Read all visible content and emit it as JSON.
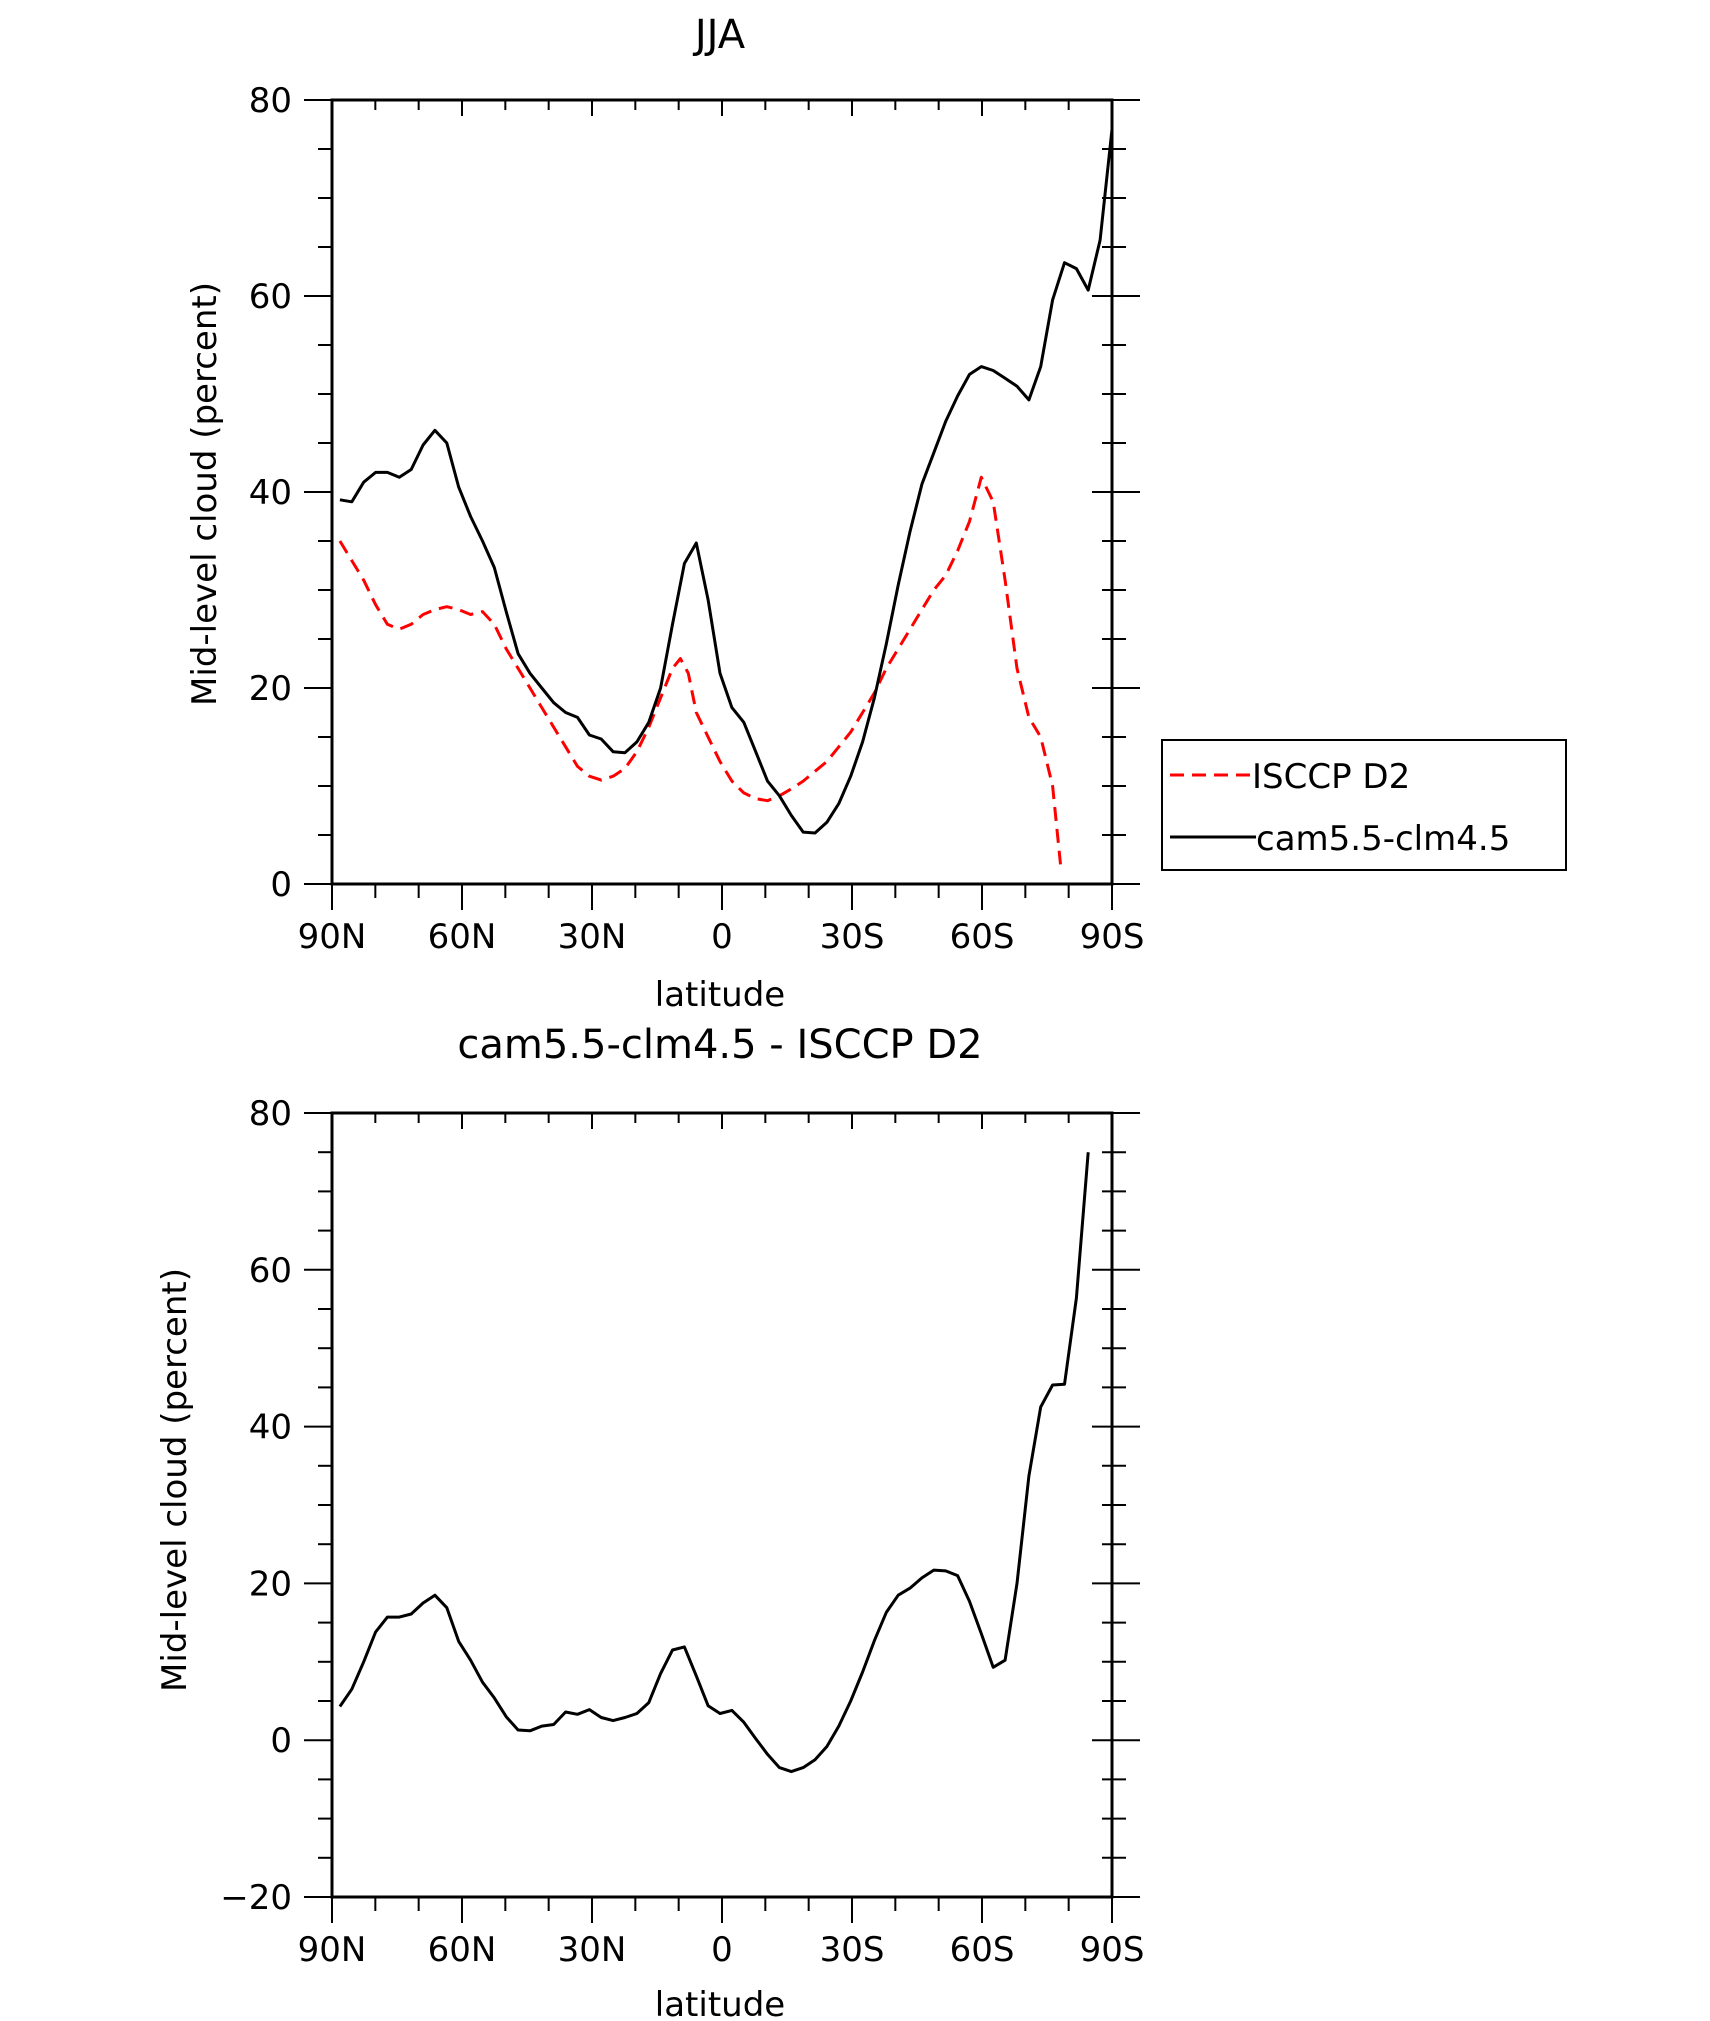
{
  "chart_data": [
    {
      "type": "line",
      "title": "JJA",
      "xlabel": "latitude",
      "ylabel": "Mid-level cloud (percent)",
      "xlim": [
        -90,
        90
      ],
      "ylim": [
        0,
        80
      ],
      "x_tick_values": [
        -90,
        -60,
        -30,
        0,
        30,
        60,
        90
      ],
      "x_tick_labels": [
        "90N",
        "60N",
        "30N",
        "0",
        "30S",
        "60S",
        "90S"
      ],
      "y_tick_values": [
        0,
        20,
        40,
        60,
        80
      ],
      "y_tick_labels": [
        "0",
        "20",
        "40",
        "60",
        "80"
      ],
      "grid": false,
      "legend_position": "right",
      "series": [
        {
          "name": "ISCCP D2",
          "color": "#ff0000",
          "dash": "dashed",
          "points": [
            [
              -88,
              35
            ],
            [
              -85,
              33
            ],
            [
              -82,
              31
            ],
            [
              -79,
              28.5
            ],
            [
              -76,
              26.5
            ],
            [
              -73,
              26
            ],
            [
              -70,
              26.5
            ],
            [
              -67,
              27.5
            ],
            [
              -64,
              28
            ],
            [
              -61,
              28.3
            ],
            [
              -58,
              28
            ],
            [
              -55,
              27.5
            ],
            [
              -52,
              27.8
            ],
            [
              -49,
              26.5
            ],
            [
              -46,
              24
            ],
            [
              -43,
              22
            ],
            [
              -40,
              20
            ],
            [
              -37,
              18
            ],
            [
              -34,
              16
            ],
            [
              -31,
              14
            ],
            [
              -28,
              12
            ],
            [
              -25,
              11
            ],
            [
              -22,
              10.6
            ],
            [
              -19,
              11
            ],
            [
              -16,
              11.8
            ],
            [
              -13,
              13.5
            ],
            [
              -10,
              16
            ],
            [
              -7,
              19
            ],
            [
              -4,
              22
            ],
            [
              -2,
              23
            ],
            [
              0,
              21.5
            ],
            [
              2,
              17.5
            ],
            [
              5,
              15
            ],
            [
              8,
              12.5
            ],
            [
              11,
              10.5
            ],
            [
              14,
              9.3
            ],
            [
              17,
              8.7
            ],
            [
              20,
              8.5
            ],
            [
              23,
              9
            ],
            [
              26,
              9.7
            ],
            [
              29,
              10.5
            ],
            [
              32,
              11.5
            ],
            [
              35,
              12.5
            ],
            [
              38,
              14
            ],
            [
              41,
              15.5
            ],
            [
              44,
              17.5
            ],
            [
              47,
              19.5
            ],
            [
              50,
              22
            ],
            [
              53,
              24
            ],
            [
              56,
              26
            ],
            [
              59,
              28
            ],
            [
              62,
              30
            ],
            [
              65,
              31.5
            ],
            [
              68,
              34
            ],
            [
              71,
              37
            ],
            [
              74,
              41.5
            ],
            [
              77,
              39
            ],
            [
              80,
              31
            ],
            [
              83,
              22
            ],
            [
              86,
              17
            ],
            [
              89,
              15
            ],
            [
              92,
              10
            ],
            [
              94,
              2
            ]
          ]
        },
        {
          "name": "cam5.5-clm4.5",
          "color": "#000000",
          "dash": "solid",
          "points": [
            [
              -88,
              39.2
            ],
            [
              -85,
              39
            ],
            [
              -82,
              41
            ],
            [
              -79,
              42
            ],
            [
              -76,
              42
            ],
            [
              -73,
              41.5
            ],
            [
              -70,
              42.3
            ],
            [
              -67,
              44.8
            ],
            [
              -64,
              46.3
            ],
            [
              -61,
              45
            ],
            [
              -58,
              40.5
            ],
            [
              -55,
              37.5
            ],
            [
              -52,
              35
            ],
            [
              -49,
              32.3
            ],
            [
              -46,
              27.8
            ],
            [
              -43,
              23.5
            ],
            [
              -40,
              21.5
            ],
            [
              -37,
              20
            ],
            [
              -34,
              18.5
            ],
            [
              -31,
              17.5
            ],
            [
              -28,
              17
            ],
            [
              -25,
              15.2
            ],
            [
              -22,
              14.8
            ],
            [
              -19,
              13.5
            ],
            [
              -16,
              13.4
            ],
            [
              -13,
              14.5
            ],
            [
              -10,
              16.5
            ],
            [
              -7,
              20
            ],
            [
              -4,
              26.5
            ],
            [
              -1,
              32.7
            ],
            [
              2,
              34.8
            ],
            [
              5,
              29
            ],
            [
              8,
              21.5
            ],
            [
              11,
              18
            ],
            [
              14,
              16.5
            ],
            [
              17,
              13.5
            ],
            [
              20,
              10.5
            ],
            [
              23,
              9
            ],
            [
              26,
              7
            ],
            [
              29,
              5.3
            ],
            [
              32,
              5.2
            ],
            [
              35,
              6.3
            ],
            [
              38,
              8.2
            ],
            [
              41,
              11
            ],
            [
              44,
              14.5
            ],
            [
              47,
              19
            ],
            [
              50,
              24.5
            ],
            [
              53,
              30.5
            ],
            [
              56,
              36
            ],
            [
              59,
              40.8
            ],
            [
              62,
              44
            ],
            [
              65,
              47.2
            ],
            [
              68,
              49.8
            ],
            [
              71,
              52
            ],
            [
              74,
              52.8
            ],
            [
              77,
              52.4
            ],
            [
              80,
              51.6
            ],
            [
              83,
              50.8
            ],
            [
              86,
              49.4
            ],
            [
              89,
              52.8
            ],
            [
              92,
              59.6
            ],
            [
              95,
              63.4
            ],
            [
              98,
              62.8
            ],
            [
              101,
              60.6
            ],
            [
              104,
              65.7
            ],
            [
              107,
              77
            ]
          ]
        }
      ]
    },
    {
      "type": "line",
      "title": "cam5.5-clm4.5 - ISCCP D2",
      "xlabel": "latitude",
      "ylabel": "Mid-level cloud (percent)",
      "xlim": [
        -90,
        90
      ],
      "ylim": [
        -20,
        80
      ],
      "x_tick_values": [
        -90,
        -60,
        -30,
        0,
        30,
        60,
        90
      ],
      "x_tick_labels": [
        "90N",
        "60N",
        "30N",
        "0",
        "30S",
        "60S",
        "90S"
      ],
      "y_tick_values": [
        -20,
        0,
        20,
        40,
        60,
        80
      ],
      "y_tick_labels": [
        "-20",
        "0",
        "20",
        "40",
        "60",
        "80"
      ],
      "grid": false,
      "series": [
        {
          "color": "#000000",
          "dash": "solid",
          "points": [
            [
              -88,
              4.3
            ],
            [
              -85,
              6.5
            ],
            [
              -82,
              10
            ],
            [
              -79,
              13.8
            ],
            [
              -76,
              15.7
            ],
            [
              -73,
              15.7
            ],
            [
              -70,
              16.1
            ],
            [
              -67,
              17.5
            ],
            [
              -64,
              18.5
            ],
            [
              -61,
              16.9
            ],
            [
              -58,
              12.6
            ],
            [
              -55,
              10.2
            ],
            [
              -52,
              7.4
            ],
            [
              -49,
              5.4
            ],
            [
              -46,
              3
            ],
            [
              -43,
              1.3
            ],
            [
              -40,
              1.2
            ],
            [
              -37,
              1.8
            ],
            [
              -34,
              2
            ],
            [
              -31,
              3.6
            ],
            [
              -28,
              3.3
            ],
            [
              -25,
              3.9
            ],
            [
              -22,
              2.9
            ],
            [
              -19,
              2.5
            ],
            [
              -16,
              2.9
            ],
            [
              -13,
              3.4
            ],
            [
              -10,
              4.8
            ],
            [
              -7,
              8.5
            ],
            [
              -4,
              11.5
            ],
            [
              -1,
              11.9
            ],
            [
              2,
              8.2
            ],
            [
              5,
              4.4
            ],
            [
              8,
              3.4
            ],
            [
              11,
              3.8
            ],
            [
              14,
              2.3
            ],
            [
              17,
              0.2
            ],
            [
              20,
              -1.8
            ],
            [
              23,
              -3.5
            ],
            [
              26,
              -4
            ],
            [
              29,
              -3.5
            ],
            [
              32,
              -2.5
            ],
            [
              35,
              -0.8
            ],
            [
              38,
              1.8
            ],
            [
              41,
              5
            ],
            [
              44,
              8.7
            ],
            [
              47,
              12.7
            ],
            [
              50,
              16.3
            ],
            [
              53,
              18.5
            ],
            [
              56,
              19.4
            ],
            [
              59,
              20.7
            ],
            [
              62,
              21.7
            ],
            [
              65,
              21.6
            ],
            [
              68,
              21
            ],
            [
              71,
              17.7
            ],
            [
              74,
              13.6
            ],
            [
              77,
              9.3
            ],
            [
              80,
              10.2
            ],
            [
              83,
              20
            ],
            [
              86,
              33.7
            ],
            [
              89,
              42.5
            ],
            [
              92,
              45.3
            ],
            [
              95,
              45.4
            ],
            [
              98,
              56.4
            ],
            [
              101,
              75
            ]
          ]
        }
      ]
    }
  ]
}
